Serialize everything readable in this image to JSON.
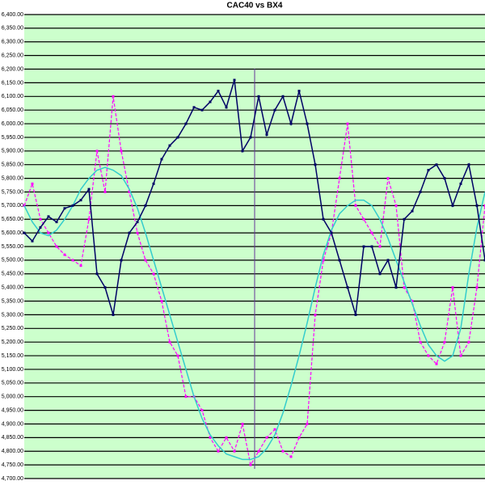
{
  "chart_data": {
    "type": "line",
    "title": "CAC40 vs BX4",
    "categories": [
      null,
      null,
      null,
      null,
      null,
      null,
      null,
      null,
      null,
      null,
      null,
      null,
      null,
      null,
      null,
      null,
      null,
      null,
      null,
      null,
      null,
      null,
      null,
      null,
      null,
      null,
      null,
      null,
      null,
      null,
      null,
      null,
      null,
      null,
      null,
      null,
      null,
      null,
      null,
      null,
      null,
      null,
      null,
      null,
      null,
      null,
      null,
      null,
      null,
      null,
      null,
      null,
      null,
      null,
      null,
      null,
      null,
      null
    ],
    "ylim": [
      4700,
      6400
    ],
    "yticks": [
      {
        "value": 4700,
        "label": "4,700.00"
      },
      {
        "value": 4750,
        "label": "4,750.00"
      },
      {
        "value": 4800,
        "label": "4,800.00"
      },
      {
        "value": 4850,
        "label": "4,850.00"
      },
      {
        "value": 4900,
        "label": "4,900.00"
      },
      {
        "value": 4950,
        "label": "4,950.00"
      },
      {
        "value": 5000,
        "label": "5,000.00"
      },
      {
        "value": 5050,
        "label": "5,050.00"
      },
      {
        "value": 5100,
        "label": "5,100.00"
      },
      {
        "value": 5150,
        "label": "5,150.00"
      },
      {
        "value": 5200,
        "label": "5,200.00"
      },
      {
        "value": 5250,
        "label": "5,250.00"
      },
      {
        "value": 5300,
        "label": "5,300.00"
      },
      {
        "value": 5350,
        "label": "5,350.00"
      },
      {
        "value": 5400,
        "label": "5,400.00"
      },
      {
        "value": 5450,
        "label": "5,450.00"
      },
      {
        "value": 5500,
        "label": "5,500.00"
      },
      {
        "value": 5550,
        "label": "5,550.00"
      },
      {
        "value": 5600,
        "label": "5,600.00"
      },
      {
        "value": 5650,
        "label": "5,650.00"
      },
      {
        "value": 5700,
        "label": "5,700.00"
      },
      {
        "value": 5750,
        "label": "5,750.00"
      },
      {
        "value": 5800,
        "label": "5,800.00"
      },
      {
        "value": 5850,
        "label": "5,850.00"
      },
      {
        "value": 5900,
        "label": "5,900.00"
      },
      {
        "value": 5950,
        "label": "5,950.00"
      },
      {
        "value": 6000,
        "label": "6,000.00"
      },
      {
        "value": 6050,
        "label": "6,050.00"
      },
      {
        "value": 6100,
        "label": "6,100.00"
      },
      {
        "value": 6150,
        "label": "6,150.00"
      },
      {
        "value": 6200,
        "label": "6,200.00"
      },
      {
        "value": 6250,
        "label": "6,250.00"
      },
      {
        "value": 6300,
        "label": "6,300.00"
      },
      {
        "value": 6350,
        "label": "6,350.00"
      },
      {
        "value": 6400,
        "label": "6,400.00"
      }
    ],
    "grid": true,
    "series": [
      {
        "color": "#ff00ff",
        "dashed": true,
        "markers": true,
        "values": [
          5700,
          5780,
          5650,
          5600,
          5550,
          5520,
          5500,
          5480,
          5650,
          5900,
          5750,
          6100,
          5900,
          5750,
          5600,
          5500,
          5450,
          5350,
          5200,
          5150,
          5000,
          5000,
          4950,
          4850,
          4800,
          4850,
          4800,
          4900,
          4750,
          4800,
          4850,
          4880,
          4800,
          4780,
          4850,
          4900,
          5300,
          5500,
          5600,
          5800,
          6000,
          5700,
          5650,
          5600,
          5550,
          5800,
          5700,
          5400,
          5350,
          5200,
          5150,
          5120,
          5200,
          5400,
          5150,
          5200,
          5400,
          5700
        ]
      },
      {
        "color": "#33cccc",
        "dashed": false,
        "markers": false,
        "values": [
          5700,
          5640,
          5600,
          5590,
          5610,
          5650,
          5700,
          5760,
          5800,
          5830,
          5840,
          5830,
          5810,
          5760,
          5690,
          5600,
          5500,
          5400,
          5300,
          5200,
          5100,
          5000,
          4920,
          4860,
          4820,
          4790,
          4780,
          4770,
          4770,
          4780,
          4810,
          4860,
          4940,
          5040,
          5150,
          5270,
          5400,
          5520,
          5610,
          5670,
          5700,
          5720,
          5720,
          5700,
          5650,
          5580,
          5500,
          5420,
          5340,
          5260,
          5190,
          5150,
          5130,
          5150,
          5250,
          5450,
          5620,
          5750
        ]
      },
      {
        "color": "#000066",
        "dashed": false,
        "markers": true,
        "values": [
          5600,
          5570,
          5620,
          5660,
          5640,
          5690,
          5700,
          5720,
          5760,
          5450,
          5400,
          5300,
          5500,
          5600,
          5640,
          5700,
          5780,
          5870,
          5920,
          5950,
          6000,
          6060,
          6050,
          6080,
          6120,
          6060,
          6160,
          5900,
          5950,
          6100,
          5960,
          6050,
          6100,
          6000,
          6120,
          6000,
          5850,
          5650,
          5600,
          5500,
          5400,
          5300,
          5550,
          5550,
          5450,
          5500,
          5400,
          5650,
          5680,
          5750,
          5830,
          5850,
          5800,
          5700,
          5780,
          5850,
          5700,
          5500
        ]
      }
    ]
  }
}
